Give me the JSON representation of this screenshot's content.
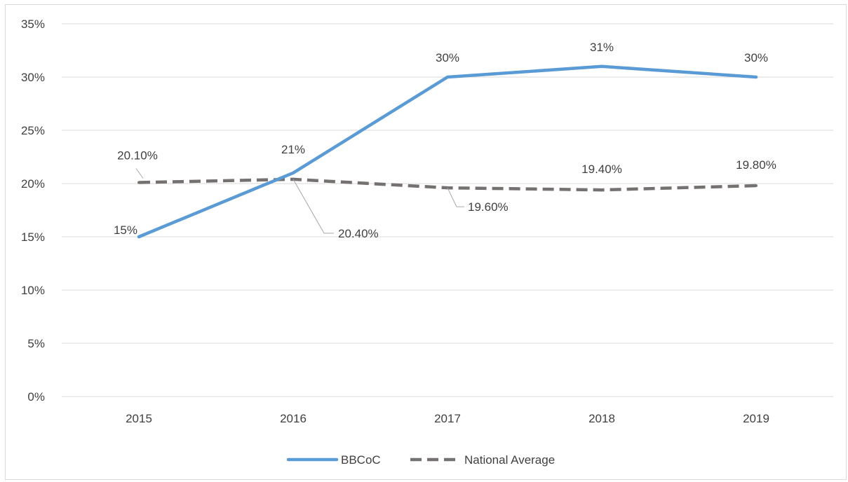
{
  "chart_data": {
    "type": "line",
    "categories": [
      "2015",
      "2016",
      "2017",
      "2018",
      "2019"
    ],
    "series": [
      {
        "name": "BBCoC",
        "values": [
          15,
          21,
          30,
          31,
          30
        ],
        "labels": [
          "15%",
          "21%",
          "30%",
          "31%",
          "30%"
        ],
        "color": "#5b9bd5",
        "style": "solid"
      },
      {
        "name": "National Average",
        "values": [
          20.1,
          20.4,
          19.6,
          19.4,
          19.8
        ],
        "labels": [
          "20.10%",
          "20.40%",
          "19.60%",
          "19.40%",
          "19.80%"
        ],
        "color": "#767171",
        "style": "dashed"
      }
    ],
    "ylim": [
      0,
      35
    ],
    "yticks": [
      0,
      5,
      10,
      15,
      20,
      25,
      30,
      35
    ],
    "ytick_labels": [
      "0%",
      "5%",
      "10%",
      "15%",
      "20%",
      "25%",
      "30%",
      "35%"
    ],
    "grid": true,
    "legend_position": "bottom",
    "gridline_color": "#d9d9d9"
  }
}
